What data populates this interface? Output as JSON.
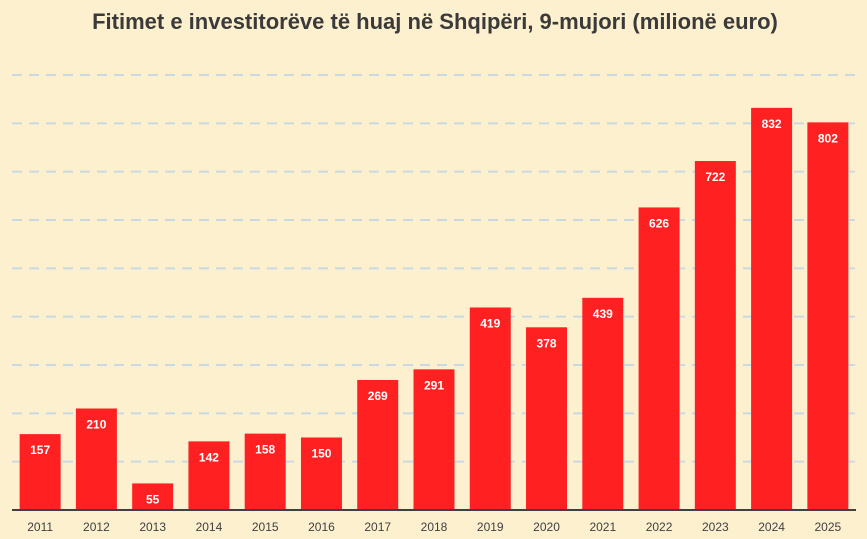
{
  "chart_data": {
    "type": "bar",
    "title": "Fitimet e investitorëve të huaj në Shqipëri, 9-mujori (milionë euro)",
    "xlabel": "",
    "ylabel": "",
    "categories": [
      "2011",
      "2012",
      "2013",
      "2014",
      "2015",
      "2016",
      "2017",
      "2018",
      "2019",
      "2020",
      "2021",
      "2022",
      "2023",
      "2024",
      "2025"
    ],
    "values": [
      157,
      210,
      55,
      142,
      158,
      150,
      269,
      291,
      419,
      378,
      439,
      626,
      722,
      832,
      802
    ],
    "ylim": [
      0,
      900
    ],
    "grid": true,
    "grid_step": 100,
    "data_labels": true,
    "colors": {
      "bar": "#ff2121",
      "grid": "#c9d9e2",
      "background": "#fdf0cf",
      "axis": "#404040"
    }
  }
}
